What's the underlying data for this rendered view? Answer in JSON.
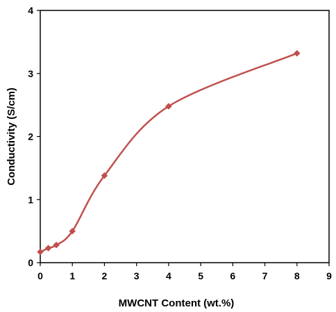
{
  "chart_data": {
    "type": "line",
    "title": "",
    "xlabel": "MWCNT Content (wt.%)",
    "ylabel": "Conductivity (S/cm)",
    "xlim": [
      0,
      9
    ],
    "ylim": [
      0,
      4
    ],
    "xticks": [
      0,
      1,
      2,
      3,
      4,
      5,
      6,
      7,
      8,
      9
    ],
    "yticks": [
      0,
      1,
      2,
      3,
      4
    ],
    "grid": false,
    "legend": "none",
    "smooth": true,
    "series": [
      {
        "color": "#c0504d",
        "marker": "diamond",
        "x": [
          0,
          0.25,
          0.5,
          1,
          2,
          4,
          8
        ],
        "y": [
          0.17,
          0.23,
          0.28,
          0.5,
          1.38,
          2.48,
          3.32
        ]
      }
    ]
  }
}
